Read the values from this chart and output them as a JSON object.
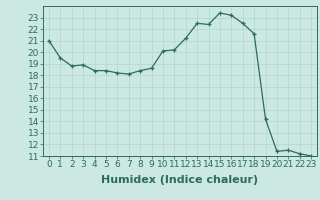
{
  "x": [
    0,
    1,
    2,
    3,
    4,
    5,
    6,
    7,
    8,
    9,
    10,
    11,
    12,
    13,
    14,
    15,
    16,
    17,
    18,
    19,
    20,
    21,
    22,
    23
  ],
  "y": [
    21.0,
    19.5,
    18.8,
    18.9,
    18.4,
    18.4,
    18.2,
    18.1,
    18.4,
    18.6,
    20.1,
    20.2,
    21.2,
    22.5,
    22.4,
    23.4,
    23.2,
    22.5,
    21.6,
    14.2,
    11.4,
    11.5,
    11.2,
    11.0
  ],
  "line_color": "#2e6b5e",
  "marker": "+",
  "bg_color": "#cbe8e3",
  "grid_color": "#b0d8d0",
  "xlabel": "Humidex (Indice chaleur)",
  "xlim": [
    -0.5,
    23.5
  ],
  "ylim": [
    11,
    24
  ],
  "yticks": [
    11,
    12,
    13,
    14,
    15,
    16,
    17,
    18,
    19,
    20,
    21,
    22,
    23
  ],
  "xticks": [
    0,
    1,
    2,
    3,
    4,
    5,
    6,
    7,
    8,
    9,
    10,
    11,
    12,
    13,
    14,
    15,
    16,
    17,
    18,
    19,
    20,
    21,
    22,
    23
  ],
  "tick_label_fontsize": 6.5,
  "xlabel_fontsize": 8.0
}
